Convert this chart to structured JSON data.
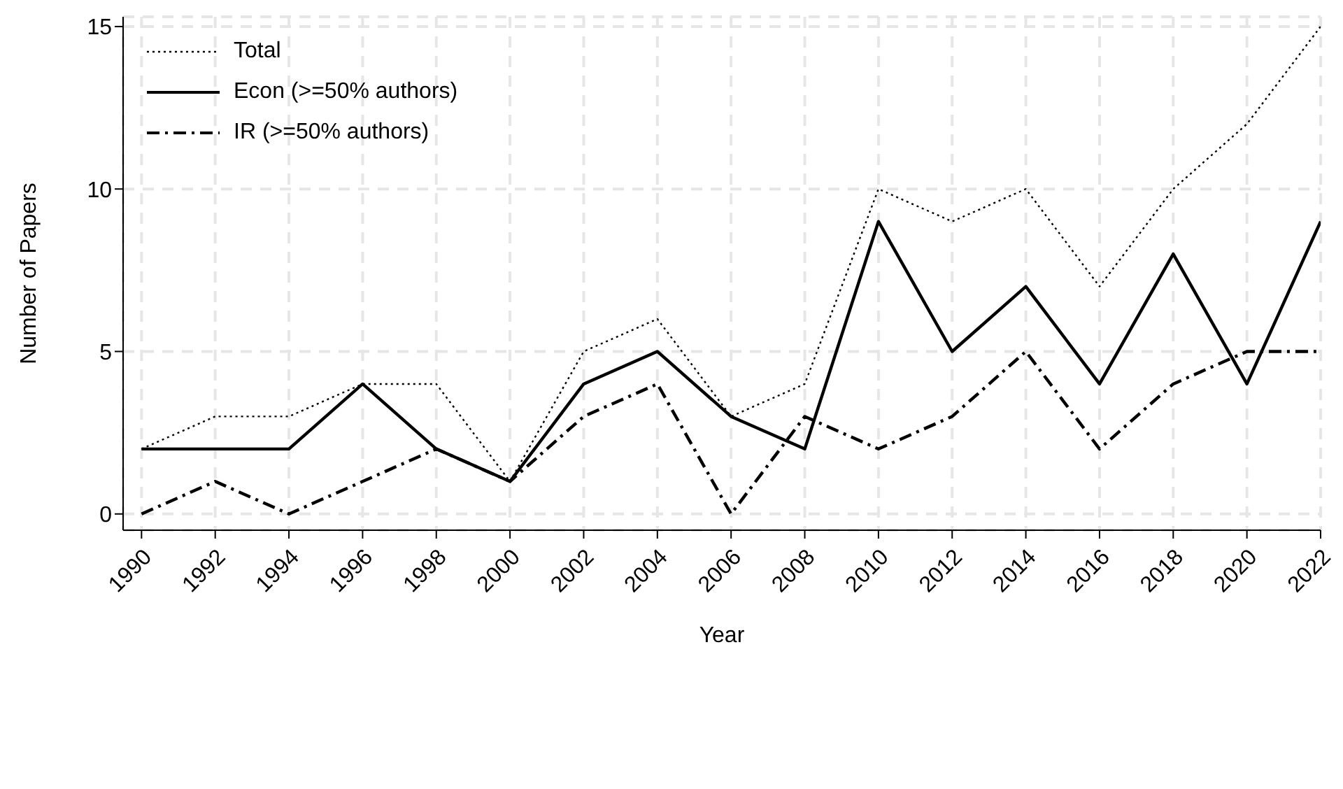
{
  "chart_data": {
    "type": "line",
    "xlabel": "Year",
    "ylabel": "Number of Papers",
    "x": [
      1990,
      1992,
      1994,
      1996,
      1998,
      2000,
      2002,
      2004,
      2006,
      2008,
      2010,
      2012,
      2014,
      2016,
      2018,
      2020,
      2022
    ],
    "series": [
      {
        "name": "Total",
        "color": "#000000",
        "line_style": "dotted",
        "values": [
          2,
          3,
          3,
          4,
          4,
          1,
          5,
          6,
          3,
          4,
          10,
          9,
          10,
          7,
          10,
          12,
          15
        ]
      },
      {
        "name": "Econ (>=50% authors)",
        "color": "#000000",
        "line_style": "solid",
        "values": [
          2,
          2,
          2,
          4,
          2,
          1,
          4,
          5,
          3,
          2,
          9,
          5,
          7,
          4,
          8,
          4,
          9
        ]
      },
      {
        "name": "IR (>=50% authors)",
        "color": "#000000",
        "line_style": "dashdot",
        "values": [
          0,
          1,
          0,
          1,
          2,
          1,
          3,
          4,
          0,
          3,
          2,
          3,
          5,
          2,
          4,
          5,
          5
        ]
      }
    ],
    "xlim": [
      1989.5,
      2022
    ],
    "xticks": [
      1990,
      1992,
      1994,
      1996,
      1998,
      2000,
      2002,
      2004,
      2006,
      2008,
      2010,
      2012,
      2014,
      2016,
      2018,
      2020,
      2022
    ],
    "ylim": [
      -0.5,
      15.3
    ],
    "yticks": [
      0,
      5,
      10,
      15
    ],
    "grid": true,
    "legend": "top left",
    "marker": "none"
  }
}
